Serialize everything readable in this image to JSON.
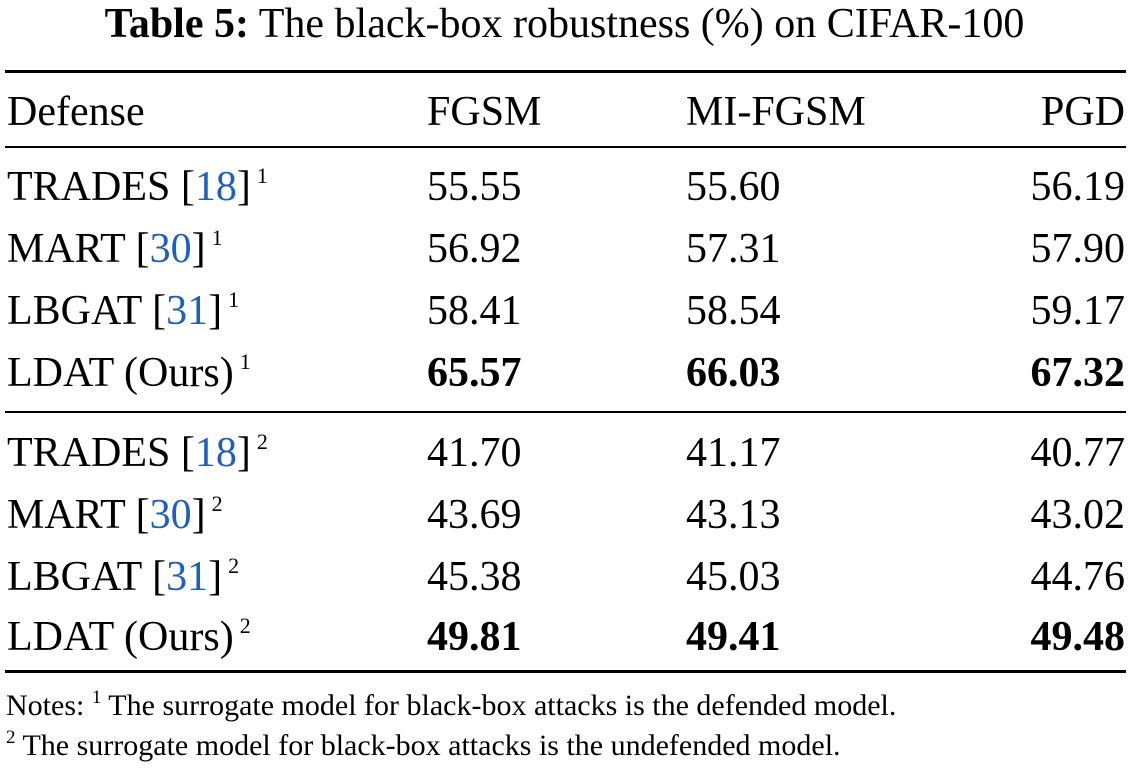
{
  "caption": {
    "label": "Table 5:",
    "text": "The black-box robustness (%) on CIFAR-100"
  },
  "header": {
    "defense": "Defense",
    "fgsm": "FGSM",
    "mi_fgsm": "MI-FGSM",
    "pgd": "PGD"
  },
  "groups": [
    {
      "rows": [
        {
          "name": "TRADES",
          "cite": "18",
          "note": "1",
          "fgsm": "55.55",
          "mi_fgsm": "55.60",
          "pgd": "56.19",
          "bold": false
        },
        {
          "name": "MART",
          "cite": "30",
          "note": "1",
          "fgsm": "56.92",
          "mi_fgsm": "57.31",
          "pgd": "57.90",
          "bold": false
        },
        {
          "name": "LBGAT",
          "cite": "31",
          "note": "1",
          "fgsm": "58.41",
          "mi_fgsm": "58.54",
          "pgd": "59.17",
          "bold": false
        },
        {
          "name": "LDAT (Ours)",
          "cite": "",
          "note": "1",
          "fgsm": "65.57",
          "mi_fgsm": "66.03",
          "pgd": "67.32",
          "bold": true
        }
      ]
    },
    {
      "rows": [
        {
          "name": "TRADES",
          "cite": "18",
          "note": "2",
          "fgsm": "41.70",
          "mi_fgsm": "41.17",
          "pgd": "40.77",
          "bold": false
        },
        {
          "name": "MART",
          "cite": "30",
          "note": "2",
          "fgsm": "43.69",
          "mi_fgsm": "43.13",
          "pgd": "43.02",
          "bold": false
        },
        {
          "name": "LBGAT",
          "cite": "31",
          "note": "2",
          "fgsm": "45.38",
          "mi_fgsm": "45.03",
          "pgd": "44.76",
          "bold": false
        },
        {
          "name": "LDAT (Ours)",
          "cite": "",
          "note": "2",
          "fgsm": "49.81",
          "mi_fgsm": "49.41",
          "pgd": "49.48",
          "bold": true
        }
      ]
    }
  ],
  "notes": {
    "prefix": "Notes:",
    "items": [
      {
        "mark": "1",
        "text": "The surrogate model for black-box attacks is the defended model."
      },
      {
        "mark": "2",
        "text": "The surrogate model for black-box attacks is the undefended model."
      }
    ]
  },
  "colors": {
    "citation": "#1f5fbf",
    "text": "#000000"
  }
}
